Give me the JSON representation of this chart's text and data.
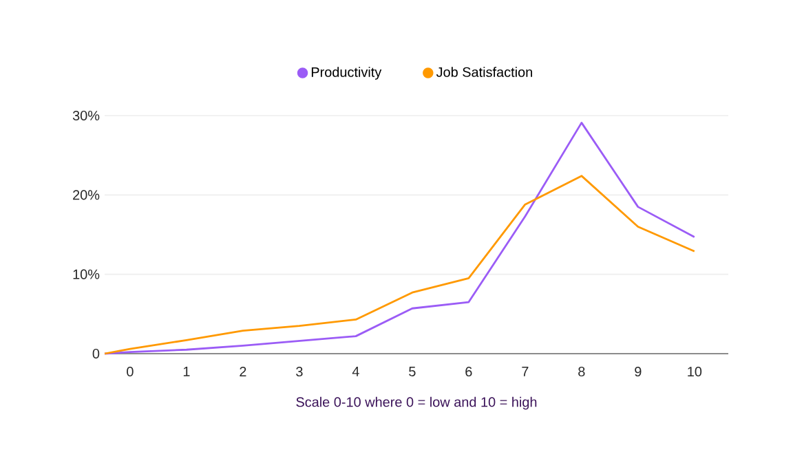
{
  "chart_data": {
    "type": "line",
    "xlabel": "Scale 0-10 where 0 = low and 10 = high",
    "xlim": [
      -0.45,
      10.6
    ],
    "xticks": [
      0,
      1,
      2,
      3,
      4,
      5,
      6,
      7,
      8,
      9,
      10
    ],
    "ylim": [
      0,
      30
    ],
    "yticks": [
      {
        "value": 0,
        "label": "0"
      },
      {
        "value": 10,
        "label": "10%"
      },
      {
        "value": 20,
        "label": "20%"
      },
      {
        "value": 30,
        "label": "30%"
      }
    ],
    "series": [
      {
        "name": "Productivity",
        "color": "#9b5cf6",
        "x": [
          -0.45,
          0,
          1,
          2,
          3,
          4,
          5,
          6,
          7,
          8,
          9,
          10
        ],
        "values": [
          0,
          0.2,
          0.5,
          1.0,
          1.6,
          2.2,
          5.7,
          6.5,
          17.3,
          29.1,
          18.5,
          14.7
        ]
      },
      {
        "name": "Job Satisfaction",
        "color": "#ff9900",
        "x": [
          -0.45,
          0,
          1,
          2,
          3,
          4,
          5,
          6,
          7,
          8,
          9,
          10
        ],
        "values": [
          0,
          0.6,
          1.7,
          2.9,
          3.5,
          4.3,
          7.7,
          9.5,
          18.8,
          22.4,
          16.0,
          12.9
        ]
      }
    ],
    "grid": "y",
    "legend": "top",
    "marker": "none",
    "line_style": "solid"
  }
}
